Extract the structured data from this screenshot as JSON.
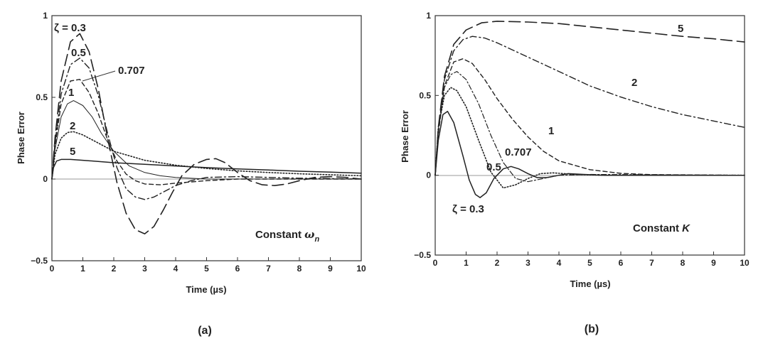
{
  "chart_data": [
    {
      "type": "line",
      "panel_label": "(a)",
      "xlabel": "Time (µs)",
      "ylabel": "Phase Error",
      "xlim": [
        0,
        10
      ],
      "ylim": [
        -0.5,
        1
      ],
      "xticks": [
        "0",
        "1",
        "2",
        "3",
        "4",
        "5",
        "6",
        "7",
        "8",
        "9",
        "10"
      ],
      "yticks": [
        "1",
        "0.5",
        "0",
        "−0.5"
      ],
      "annotation": {
        "main": "Constant",
        "symbol": "ω",
        "subscript": "n"
      },
      "series": [
        {
          "name": "ζ = 0.3",
          "style": "long-dash",
          "points": [
            [
              0,
              0
            ],
            [
              0.1,
              0.25
            ],
            [
              0.3,
              0.6
            ],
            [
              0.6,
              0.84
            ],
            [
              0.9,
              0.89
            ],
            [
              1.2,
              0.78
            ],
            [
              1.5,
              0.55
            ],
            [
              1.8,
              0.25
            ],
            [
              2.1,
              -0.02
            ],
            [
              2.4,
              -0.21
            ],
            [
              2.7,
              -0.31
            ],
            [
              3.0,
              -0.335
            ],
            [
              3.3,
              -0.29
            ],
            [
              3.6,
              -0.19
            ],
            [
              3.9,
              -0.08
            ],
            [
              4.2,
              0.02
            ],
            [
              4.6,
              0.09
            ],
            [
              5.0,
              0.12
            ],
            [
              5.3,
              0.125
            ],
            [
              5.6,
              0.1
            ],
            [
              6.0,
              0.04
            ],
            [
              6.4,
              -0.01
            ],
            [
              6.8,
              -0.035
            ],
            [
              7.2,
              -0.04
            ],
            [
              7.6,
              -0.03
            ],
            [
              8.0,
              -0.01
            ],
            [
              8.5,
              0.01
            ],
            [
              9.0,
              0.015
            ],
            [
              9.5,
              0.01
            ],
            [
              10,
              0.0
            ]
          ]
        },
        {
          "name": "0.5",
          "style": "dash-dot",
          "points": [
            [
              0,
              0
            ],
            [
              0.1,
              0.22
            ],
            [
              0.3,
              0.52
            ],
            [
              0.6,
              0.7
            ],
            [
              0.9,
              0.74
            ],
            [
              1.2,
              0.68
            ],
            [
              1.5,
              0.51
            ],
            [
              1.8,
              0.28
            ],
            [
              2.1,
              0.07
            ],
            [
              2.4,
              -0.06
            ],
            [
              2.7,
              -0.11
            ],
            [
              3.0,
              -0.125
            ],
            [
              3.3,
              -0.11
            ],
            [
              3.6,
              -0.08
            ],
            [
              4.0,
              -0.04
            ],
            [
              4.5,
              -0.01
            ],
            [
              5.0,
              0.01
            ],
            [
              6.0,
              0.015
            ],
            [
              7.0,
              0.01
            ],
            [
              8.0,
              0.005
            ],
            [
              10,
              0.0
            ]
          ]
        },
        {
          "name": "0.707",
          "style": "short-dash",
          "points": [
            [
              0,
              0
            ],
            [
              0.1,
              0.2
            ],
            [
              0.3,
              0.46
            ],
            [
              0.6,
              0.6
            ],
            [
              0.9,
              0.61
            ],
            [
              1.2,
              0.53
            ],
            [
              1.5,
              0.4
            ],
            [
              1.8,
              0.24
            ],
            [
              2.1,
              0.11
            ],
            [
              2.4,
              0.03
            ],
            [
              2.7,
              -0.01
            ],
            [
              3.0,
              -0.03
            ],
            [
              3.5,
              -0.035
            ],
            [
              4.0,
              -0.025
            ],
            [
              5.0,
              -0.01
            ],
            [
              6.0,
              0.0
            ],
            [
              10,
              0.0
            ]
          ]
        },
        {
          "name": "1",
          "style": "solid-thin",
          "points": [
            [
              0,
              0
            ],
            [
              0.1,
              0.18
            ],
            [
              0.3,
              0.38
            ],
            [
              0.5,
              0.46
            ],
            [
              0.7,
              0.48
            ],
            [
              1.0,
              0.45
            ],
            [
              1.3,
              0.38
            ],
            [
              1.6,
              0.28
            ],
            [
              2.0,
              0.17
            ],
            [
              2.5,
              0.08
            ],
            [
              3.0,
              0.04
            ],
            [
              3.5,
              0.02
            ],
            [
              4.0,
              0.01
            ],
            [
              5.0,
              0.0
            ],
            [
              10,
              0.0
            ]
          ]
        },
        {
          "name": "2",
          "style": "dotted",
          "points": [
            [
              0,
              0
            ],
            [
              0.1,
              0.15
            ],
            [
              0.3,
              0.25
            ],
            [
              0.5,
              0.285
            ],
            [
              0.7,
              0.29
            ],
            [
              1.0,
              0.27
            ],
            [
              1.5,
              0.22
            ],
            [
              2.0,
              0.17
            ],
            [
              3.0,
              0.115
            ],
            [
              4.0,
              0.085
            ],
            [
              5.0,
              0.065
            ],
            [
              6.0,
              0.05
            ],
            [
              7.0,
              0.04
            ],
            [
              8.0,
              0.032
            ],
            [
              9.0,
              0.026
            ],
            [
              10,
              0.02
            ]
          ]
        },
        {
          "name": "5",
          "style": "solid",
          "points": [
            [
              0,
              0
            ],
            [
              0.05,
              0.07
            ],
            [
              0.15,
              0.11
            ],
            [
              0.3,
              0.12
            ],
            [
              0.6,
              0.12
            ],
            [
              1.0,
              0.115
            ],
            [
              2.0,
              0.1
            ],
            [
              3.0,
              0.09
            ],
            [
              4.0,
              0.08
            ],
            [
              5.0,
              0.07
            ],
            [
              6.0,
              0.062
            ],
            [
              7.0,
              0.055
            ],
            [
              8.0,
              0.048
            ],
            [
              9.0,
              0.042
            ],
            [
              10,
              0.036
            ]
          ]
        }
      ]
    },
    {
      "type": "line",
      "panel_label": "(b)",
      "xlabel": "Time (µs)",
      "ylabel": "Phase Error",
      "xlim": [
        0,
        10
      ],
      "ylim": [
        -0.5,
        1
      ],
      "xticks": [
        "0",
        "1",
        "2",
        "3",
        "4",
        "5",
        "6",
        "7",
        "8",
        "9",
        "10"
      ],
      "yticks": [
        "1",
        "0.5",
        "0",
        "−0.5"
      ],
      "annotation": {
        "main": "Constant",
        "symbol": "K",
        "subscript": ""
      },
      "series": [
        {
          "name": "5",
          "style": "long-dash",
          "points": [
            [
              0,
              0
            ],
            [
              0.1,
              0.3
            ],
            [
              0.3,
              0.62
            ],
            [
              0.6,
              0.82
            ],
            [
              1.0,
              0.91
            ],
            [
              1.5,
              0.955
            ],
            [
              2.0,
              0.965
            ],
            [
              3.0,
              0.96
            ],
            [
              4.0,
              0.95
            ],
            [
              5.0,
              0.93
            ],
            [
              6.0,
              0.91
            ],
            [
              7.0,
              0.89
            ],
            [
              8.0,
              0.87
            ],
            [
              9.0,
              0.855
            ],
            [
              10,
              0.835
            ]
          ]
        },
        {
          "name": "2",
          "style": "dash-dot",
          "points": [
            [
              0,
              0
            ],
            [
              0.1,
              0.28
            ],
            [
              0.3,
              0.6
            ],
            [
              0.6,
              0.78
            ],
            [
              0.9,
              0.85
            ],
            [
              1.2,
              0.87
            ],
            [
              1.6,
              0.86
            ],
            [
              2.0,
              0.83
            ],
            [
              3.0,
              0.74
            ],
            [
              4.0,
              0.65
            ],
            [
              5.0,
              0.56
            ],
            [
              6.0,
              0.49
            ],
            [
              7.0,
              0.43
            ],
            [
              8.0,
              0.38
            ],
            [
              9.0,
              0.34
            ],
            [
              10,
              0.3
            ]
          ]
        },
        {
          "name": "1",
          "style": "short-dash",
          "points": [
            [
              0,
              0
            ],
            [
              0.1,
              0.26
            ],
            [
              0.3,
              0.56
            ],
            [
              0.6,
              0.71
            ],
            [
              0.9,
              0.73
            ],
            [
              1.2,
              0.7
            ],
            [
              1.6,
              0.6
            ],
            [
              2.0,
              0.48
            ],
            [
              2.5,
              0.35
            ],
            [
              3.0,
              0.24
            ],
            [
              3.5,
              0.15
            ],
            [
              4.0,
              0.09
            ],
            [
              5.0,
              0.035
            ],
            [
              6.0,
              0.012
            ],
            [
              7.0,
              0.004
            ],
            [
              10,
              0.0
            ]
          ]
        },
        {
          "name": "0.707",
          "style": "dash-dot-thin",
          "points": [
            [
              0,
              0
            ],
            [
              0.1,
              0.28
            ],
            [
              0.3,
              0.55
            ],
            [
              0.5,
              0.63
            ],
            [
              0.7,
              0.65
            ],
            [
              1.0,
              0.6
            ],
            [
              1.4,
              0.45
            ],
            [
              1.8,
              0.25
            ],
            [
              2.2,
              0.08
            ],
            [
              2.6,
              -0.02
            ],
            [
              3.0,
              -0.04
            ],
            [
              3.5,
              -0.02
            ],
            [
              4.0,
              0.0
            ],
            [
              5.0,
              0.005
            ],
            [
              10,
              0.0
            ]
          ]
        },
        {
          "name": "0.5",
          "style": "dotted",
          "points": [
            [
              0,
              0
            ],
            [
              0.1,
              0.3
            ],
            [
              0.3,
              0.5
            ],
            [
              0.5,
              0.55
            ],
            [
              0.7,
              0.53
            ],
            [
              1.0,
              0.43
            ],
            [
              1.4,
              0.22
            ],
            [
              1.8,
              0.02
            ],
            [
              2.2,
              -0.08
            ],
            [
              2.6,
              -0.06
            ],
            [
              3.0,
              -0.02
            ],
            [
              3.4,
              0.01
            ],
            [
              3.8,
              0.015
            ],
            [
              4.5,
              0.005
            ],
            [
              5.5,
              0.0
            ],
            [
              10,
              0.0
            ]
          ]
        },
        {
          "name": "ζ = 0.3",
          "style": "solid",
          "points": [
            [
              0,
              0
            ],
            [
              0.1,
              0.22
            ],
            [
              0.25,
              0.38
            ],
            [
              0.4,
              0.4
            ],
            [
              0.6,
              0.33
            ],
            [
              0.9,
              0.12
            ],
            [
              1.1,
              -0.03
            ],
            [
              1.3,
              -0.12
            ],
            [
              1.45,
              -0.14
            ],
            [
              1.65,
              -0.11
            ],
            [
              1.9,
              -0.02
            ],
            [
              2.2,
              0.04
            ],
            [
              2.45,
              0.055
            ],
            [
              2.7,
              0.04
            ],
            [
              3.0,
              0.01
            ],
            [
              3.3,
              -0.015
            ],
            [
              3.6,
              -0.015
            ],
            [
              4.0,
              0.0
            ],
            [
              4.3,
              0.01
            ],
            [
              4.8,
              0.005
            ],
            [
              5.5,
              0.0
            ],
            [
              10,
              0.0
            ]
          ]
        }
      ]
    }
  ]
}
